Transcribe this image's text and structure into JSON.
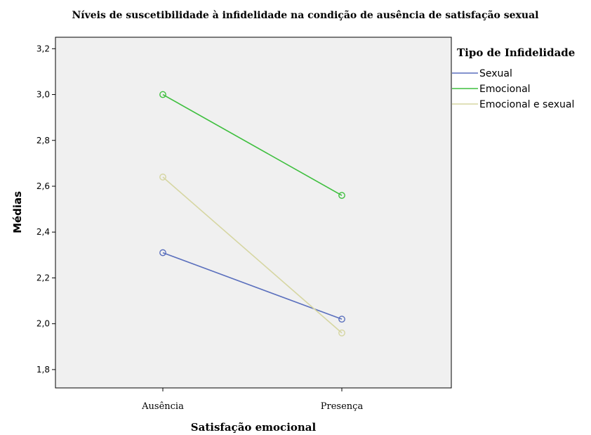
{
  "chart_data": {
    "type": "line",
    "title": "Níveis de suscetibilidade à infidelidade na condição de ausência de satisfação sexual",
    "xlabel": "Satisfação emocional",
    "ylabel": "Médias",
    "categories": [
      "Ausência",
      "Presença"
    ],
    "ylim": [
      1.72,
      3.25
    ],
    "yticks": [
      "1,8",
      "2,0",
      "2,2",
      "2,4",
      "2,6",
      "2,8",
      "3,0",
      "3,2"
    ],
    "ytick_values": [
      1.8,
      2.0,
      2.2,
      2.4,
      2.6,
      2.8,
      3.0,
      3.2
    ],
    "grid": false,
    "legend_title": "Tipo de Infidelidade",
    "legend_position": "right",
    "series": [
      {
        "name": "Sexual",
        "values": [
          2.31,
          2.02
        ],
        "color": "#5a6fbd"
      },
      {
        "name": "Emocional",
        "values": [
          3.0,
          2.56
        ],
        "color": "#3ebf3e"
      },
      {
        "name": "Emocional e sexual",
        "values": [
          2.64,
          1.96
        ],
        "color": "#d6d6a2"
      }
    ]
  },
  "colors": {
    "plot_background": "#f0f0f0",
    "axis": "#000000"
  }
}
